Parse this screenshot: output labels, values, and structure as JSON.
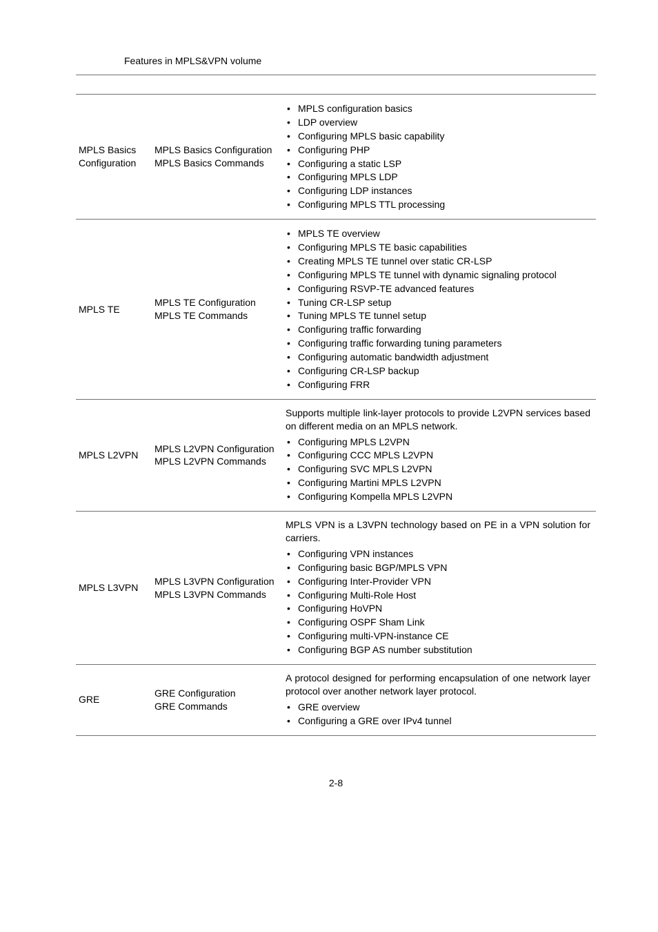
{
  "page": {
    "caption": "Features in MPLS&VPN volume",
    "footer": "2-8"
  },
  "colors": {
    "text": "#000000",
    "border": "#707070",
    "background": "#ffffff"
  },
  "rows": [
    {
      "col1": "MPLS Basics Configuration",
      "col2_lines": [
        "MPLS Basics Configuration",
        "MPLS Basics Commands"
      ],
      "intro": null,
      "bullets": [
        "MPLS configuration basics",
        "LDP overview",
        "Configuring MPLS basic capability",
        "Configuring PHP",
        "Configuring a static LSP",
        "Configuring MPLS LDP",
        "Configuring LDP instances",
        "Configuring MPLS TTL processing"
      ]
    },
    {
      "col1": "MPLS TE",
      "col2_lines": [
        "MPLS TE Configuration",
        "MPLS TE Commands"
      ],
      "intro": null,
      "bullets": [
        "MPLS TE overview",
        "Configuring MPLS TE basic capabilities",
        "Creating MPLS TE tunnel over static CR-LSP",
        "Configuring MPLS TE tunnel with dynamic signaling protocol",
        "Configuring RSVP-TE advanced features",
        "Tuning CR-LSP setup",
        "Tuning MPLS TE tunnel setup",
        "Configuring traffic forwarding",
        "Configuring traffic forwarding tuning parameters",
        "Configuring automatic bandwidth adjustment",
        "Configuring CR-LSP backup",
        "Configuring FRR"
      ]
    },
    {
      "col1": "MPLS L2VPN",
      "col2_lines": [
        "MPLS L2VPN Configuration",
        "MPLS L2VPN Commands"
      ],
      "intro": "Supports multiple link-layer protocols to provide L2VPN services based on different media on an MPLS network.",
      "bullets": [
        "Configuring MPLS L2VPN",
        "Configuring CCC MPLS L2VPN",
        "Configuring SVC MPLS L2VPN",
        "Configuring Martini MPLS L2VPN",
        "Configuring Kompella MPLS L2VPN"
      ]
    },
    {
      "col1": "MPLS L3VPN",
      "col2_lines": [
        "MPLS L3VPN Configuration",
        "MPLS L3VPN Commands"
      ],
      "intro": "MPLS VPN is a L3VPN technology based on PE in a VPN solution for carriers.",
      "bullets": [
        "Configuring VPN instances",
        "Configuring basic BGP/MPLS VPN",
        "Configuring Inter-Provider VPN",
        "Configuring Multi-Role Host",
        "Configuring HoVPN",
        "Configuring OSPF Sham Link",
        "Configuring multi-VPN-instance CE",
        "Configuring BGP AS number substitution"
      ]
    },
    {
      "col1": "GRE",
      "col2_lines": [
        "GRE Configuration",
        "GRE Commands"
      ],
      "intro": "A protocol designed for performing encapsulation of one network layer protocol over another network layer protocol.",
      "bullets": [
        "GRE overview",
        "Configuring a GRE over IPv4 tunnel"
      ]
    }
  ]
}
